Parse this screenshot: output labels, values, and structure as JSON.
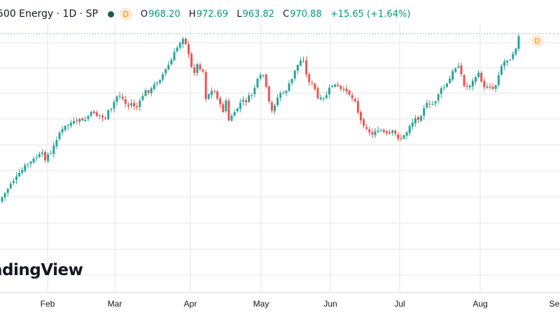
{
  "header": {
    "symbol_text": "500 Energy · 1D · SP",
    "badge": "D",
    "open_key": "O",
    "open": "968.20",
    "high_key": "H",
    "high": "972.69",
    "low_key": "L",
    "low": "963.82",
    "close_key": "C",
    "close": "970.88",
    "change": "+15.65 (+1.64%)"
  },
  "watermark": "adingView",
  "dividend_marker": "D",
  "colors": {
    "up": "#26a69a",
    "down": "#ef5350",
    "grid": "#e6e6e6",
    "text": "#131722"
  },
  "chart_data": {
    "type": "candlestick",
    "title": "",
    "x_ticks": [
      "Feb",
      "Mar",
      "Apr",
      "May",
      "Jun",
      "Jul",
      "Aug",
      "Se"
    ],
    "last_close": 970.88,
    "close_path": [
      [
        0,
        286
      ],
      [
        5,
        279
      ],
      [
        10,
        272
      ],
      [
        15,
        262
      ],
      [
        20,
        257
      ],
      [
        25,
        252
      ],
      [
        30,
        246
      ],
      [
        35,
        238
      ],
      [
        40,
        234
      ],
      [
        45,
        231
      ],
      [
        50,
        226
      ],
      [
        55,
        223
      ],
      [
        60,
        218
      ],
      [
        63,
        232
      ],
      [
        67,
        218
      ],
      [
        71,
        225
      ],
      [
        75,
        214
      ],
      [
        79,
        203
      ],
      [
        84,
        190
      ],
      [
        89,
        186
      ],
      [
        94,
        180
      ],
      [
        99,
        177
      ],
      [
        104,
        174
      ],
      [
        109,
        176
      ],
      [
        114,
        169
      ],
      [
        119,
        175
      ],
      [
        124,
        168
      ],
      [
        129,
        163
      ],
      [
        134,
        160
      ],
      [
        139,
        166
      ],
      [
        144,
        164
      ],
      [
        149,
        172
      ],
      [
        154,
        160
      ],
      [
        159,
        157
      ],
      [
        164,
        143
      ],
      [
        169,
        134
      ],
      [
        174,
        139
      ],
      [
        179,
        148
      ],
      [
        184,
        152
      ],
      [
        189,
        146
      ],
      [
        194,
        156
      ],
      [
        199,
        148
      ],
      [
        204,
        136
      ],
      [
        209,
        129
      ],
      [
        214,
        131
      ],
      [
        219,
        123
      ],
      [
        224,
        117
      ],
      [
        229,
        112
      ],
      [
        234,
        104
      ],
      [
        239,
        96
      ],
      [
        244,
        88
      ],
      [
        249,
        76
      ],
      [
        254,
        66
      ],
      [
        259,
        57
      ],
      [
        263,
        51
      ],
      [
        267,
        68
      ],
      [
        271,
        86
      ],
      [
        276,
        107
      ],
      [
        281,
        92
      ],
      [
        286,
        97
      ],
      [
        290,
        102
      ],
      [
        294,
        140
      ],
      [
        299,
        133
      ],
      [
        304,
        129
      ],
      [
        309,
        134
      ],
      [
        314,
        150
      ],
      [
        319,
        159
      ],
      [
        323,
        143
      ],
      [
        327,
        174
      ],
      [
        331,
        165
      ],
      [
        336,
        162
      ],
      [
        341,
        150
      ],
      [
        346,
        144
      ],
      [
        351,
        145
      ],
      [
        356,
        138
      ],
      [
        361,
        134
      ],
      [
        366,
        118
      ],
      [
        371,
        110
      ],
      [
        376,
        107
      ],
      [
        380,
        125
      ],
      [
        384,
        146
      ],
      [
        388,
        160
      ],
      [
        392,
        150
      ],
      [
        396,
        141
      ],
      [
        401,
        132
      ],
      [
        406,
        135
      ],
      [
        411,
        124
      ],
      [
        416,
        117
      ],
      [
        421,
        100
      ],
      [
        426,
        92
      ],
      [
        430,
        86
      ],
      [
        434,
        84
      ],
      [
        438,
        110
      ],
      [
        442,
        116
      ],
      [
        446,
        121
      ],
      [
        450,
        128
      ],
      [
        455,
        144
      ],
      [
        459,
        141
      ],
      [
        463,
        142
      ],
      [
        467,
        134
      ],
      [
        471,
        126
      ],
      [
        475,
        121
      ],
      [
        480,
        122
      ],
      [
        484,
        125
      ],
      [
        489,
        131
      ],
      [
        494,
        127
      ],
      [
        499,
        134
      ],
      [
        503,
        140
      ],
      [
        508,
        143
      ],
      [
        513,
        168
      ],
      [
        518,
        177
      ],
      [
        522,
        179
      ],
      [
        527,
        189
      ],
      [
        531,
        194
      ],
      [
        535,
        185
      ],
      [
        540,
        189
      ],
      [
        545,
        186
      ],
      [
        550,
        191
      ],
      [
        555,
        193
      ],
      [
        560,
        188
      ],
      [
        565,
        192
      ],
      [
        570,
        198
      ],
      [
        575,
        197
      ],
      [
        580,
        191
      ],
      [
        585,
        179
      ],
      [
        590,
        174
      ],
      [
        595,
        167
      ],
      [
        599,
        170
      ],
      [
        603,
        160
      ],
      [
        608,
        147
      ],
      [
        612,
        152
      ],
      [
        617,
        150
      ],
      [
        622,
        144
      ],
      [
        627,
        132
      ],
      [
        632,
        126
      ],
      [
        636,
        124
      ],
      [
        641,
        117
      ],
      [
        646,
        104
      ],
      [
        650,
        98
      ],
      [
        655,
        92
      ],
      [
        660,
        110
      ],
      [
        664,
        127
      ],
      [
        669,
        122
      ],
      [
        674,
        119
      ],
      [
        679,
        110
      ],
      [
        683,
        105
      ],
      [
        688,
        115
      ],
      [
        692,
        127
      ],
      [
        697,
        121
      ],
      [
        701,
        124
      ],
      [
        706,
        128
      ],
      [
        710,
        115
      ],
      [
        714,
        98
      ],
      [
        719,
        89
      ],
      [
        724,
        86
      ],
      [
        729,
        83
      ],
      [
        733,
        75
      ],
      [
        737,
        67
      ],
      [
        742,
        49
      ]
    ]
  }
}
